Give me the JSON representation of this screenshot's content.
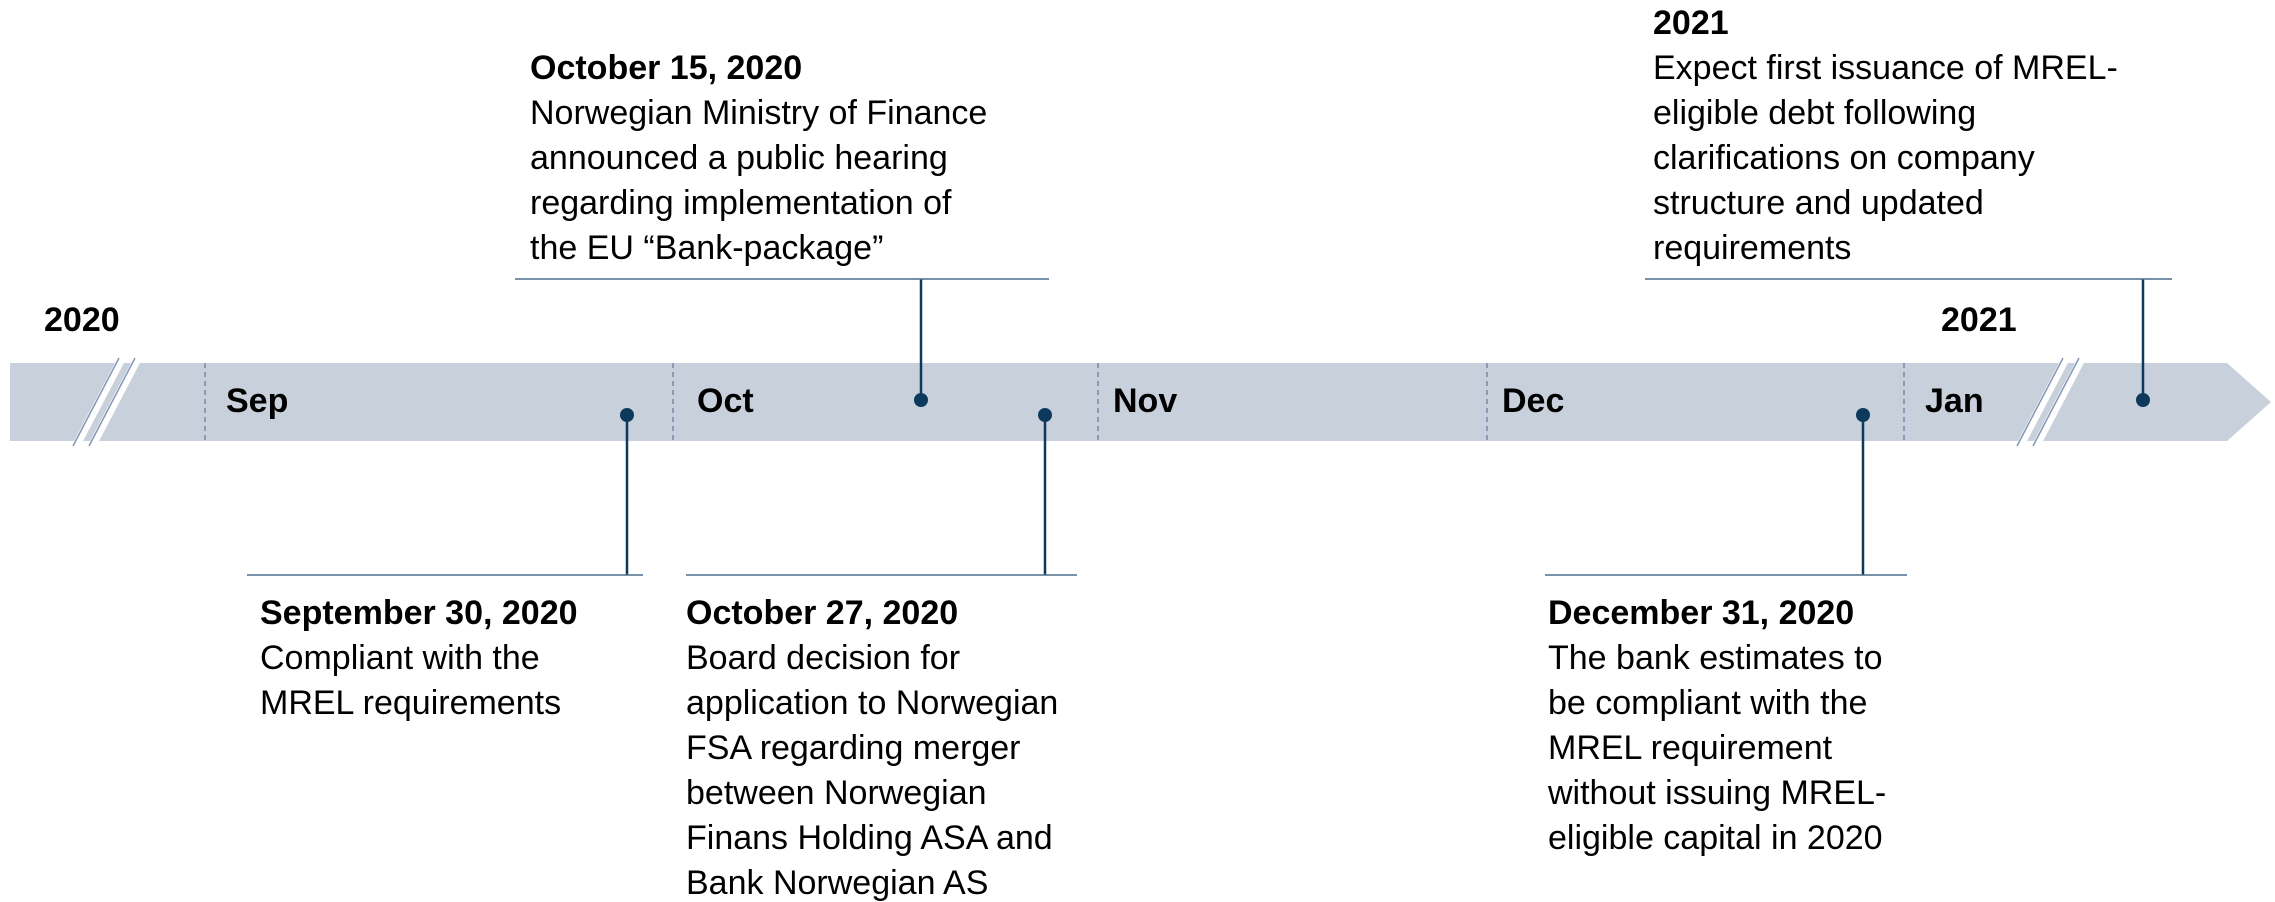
{
  "years": [
    "2020",
    "2021"
  ],
  "months": [
    "Sep",
    "Oct",
    "Nov",
    "Dec",
    "Jan"
  ],
  "events": [
    {
      "date": "October 15, 2020",
      "lines": [
        "Norwegian Ministry of Finance",
        "announced a public hearing",
        "regarding implementation of",
        "the EU “Bank-package”"
      ]
    },
    {
      "date": "2021",
      "lines": [
        "Expect first issuance of MREL-",
        "eligible debt following",
        "clarifications on company",
        "structure and updated",
        "requirements"
      ]
    },
    {
      "date": "September 30, 2020",
      "lines": [
        "Compliant with the",
        "MREL requirements"
      ]
    },
    {
      "date": "October 27, 2020",
      "lines": [
        "Board decision for",
        "application to Norwegian",
        "FSA regarding merger",
        "between Norwegian",
        "Finans Holding ASA and",
        "Bank Norwegian AS"
      ]
    },
    {
      "date": "December 31, 2020",
      "lines": [
        "The bank estimates to",
        "be compliant with the",
        "MREL requirement",
        "without issuing MREL-",
        "eligible capital in 2020"
      ]
    }
  ]
}
